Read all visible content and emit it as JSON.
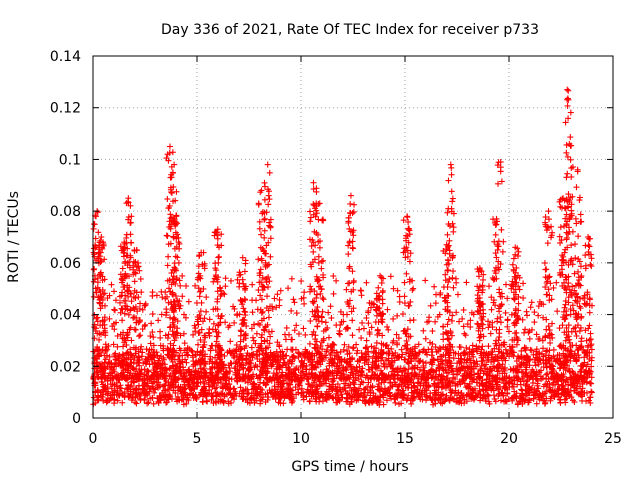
{
  "chart_data": {
    "type": "scatter",
    "title": "Day 336 of 2021, Rate Of TEC Index for receiver p733",
    "xlabel": "GPS time / hours",
    "ylabel": "ROTI / TECUs",
    "xlim": [
      0,
      25
    ],
    "ylim": [
      0,
      0.14
    ],
    "x_ticks": [
      0,
      5,
      10,
      15,
      20,
      25
    ],
    "x_tick_labels": [
      "0",
      "5",
      "10",
      "15",
      "20",
      "25"
    ],
    "y_ticks": [
      0,
      0.02,
      0.04,
      0.06,
      0.08,
      0.1,
      0.12,
      0.14
    ],
    "y_tick_labels": [
      "0",
      "0.02",
      "0.04",
      "0.06",
      "0.08",
      "0.1",
      "0.12",
      "0.14"
    ],
    "grid": true,
    "marker": "+",
    "series_color": "#ff0000",
    "data_range_x": [
      0,
      24
    ],
    "baseline_range": [
      0.005,
      0.025
    ],
    "peaks": [
      {
        "x": 0.2,
        "y": 0.08
      },
      {
        "x": 0.4,
        "y": 0.07
      },
      {
        "x": 1.7,
        "y": 0.085
      },
      {
        "x": 1.5,
        "y": 0.068
      },
      {
        "x": 2.1,
        "y": 0.065
      },
      {
        "x": 3.7,
        "y": 0.105
      },
      {
        "x": 3.9,
        "y": 0.098
      },
      {
        "x": 4.0,
        "y": 0.078
      },
      {
        "x": 5.2,
        "y": 0.064
      },
      {
        "x": 6.0,
        "y": 0.073
      },
      {
        "x": 7.2,
        "y": 0.062
      },
      {
        "x": 8.1,
        "y": 0.088
      },
      {
        "x": 8.4,
        "y": 0.098
      },
      {
        "x": 10.6,
        "y": 0.091
      },
      {
        "x": 10.9,
        "y": 0.083
      },
      {
        "x": 12.4,
        "y": 0.086
      },
      {
        "x": 13.8,
        "y": 0.055
      },
      {
        "x": 15.1,
        "y": 0.078
      },
      {
        "x": 17.2,
        "y": 0.098
      },
      {
        "x": 17.0,
        "y": 0.067
      },
      {
        "x": 18.6,
        "y": 0.058
      },
      {
        "x": 19.6,
        "y": 0.099
      },
      {
        "x": 19.4,
        "y": 0.077
      },
      {
        "x": 20.3,
        "y": 0.066
      },
      {
        "x": 21.9,
        "y": 0.08
      },
      {
        "x": 22.6,
        "y": 0.085
      },
      {
        "x": 22.8,
        "y": 0.127
      },
      {
        "x": 22.9,
        "y": 0.106
      },
      {
        "x": 23.3,
        "y": 0.096
      },
      {
        "x": 23.8,
        "y": 0.07
      }
    ]
  }
}
